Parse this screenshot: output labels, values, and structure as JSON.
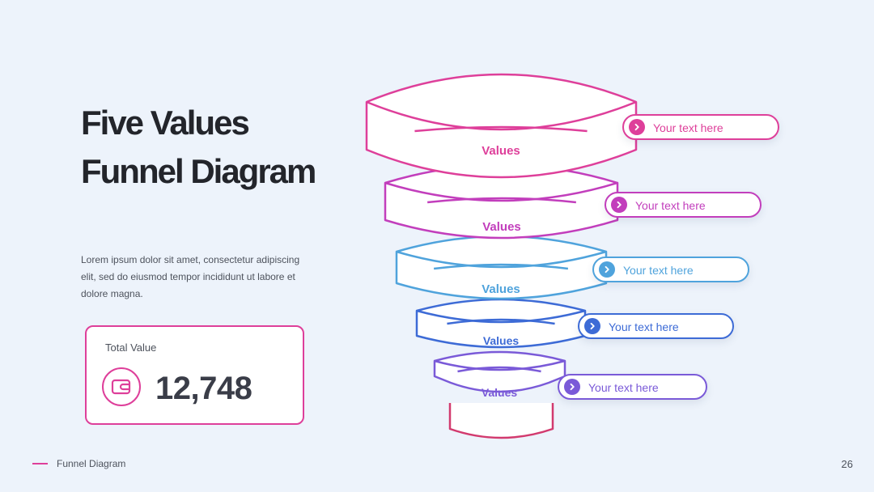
{
  "slide": {
    "title": "Five Values Funnel Diagram",
    "description": "Lorem ipsum dolor sit amet, consectetur adipiscing elit, sed do eiusmod tempor incididunt ut labore et dolore magna.",
    "page_number": "26"
  },
  "total": {
    "label": "Total Value",
    "value": "12,748",
    "icon": "wallet-icon"
  },
  "footer": {
    "label": "Funnel Diagram"
  },
  "funnel": {
    "levels": [
      {
        "label": "Values",
        "callout": "Your text here",
        "color": "#de3f9a"
      },
      {
        "label": "Values",
        "callout": "Your text here",
        "color": "#c23ebc"
      },
      {
        "label": "Values",
        "callout": "Your text here",
        "color": "#4fa3dc"
      },
      {
        "label": "Values",
        "callout": "Your text here",
        "color": "#3d6bd6"
      },
      {
        "label": "Values",
        "callout": "Your text here",
        "color": "#7a5ad8"
      }
    ],
    "spout_color": "#d23a6e"
  }
}
